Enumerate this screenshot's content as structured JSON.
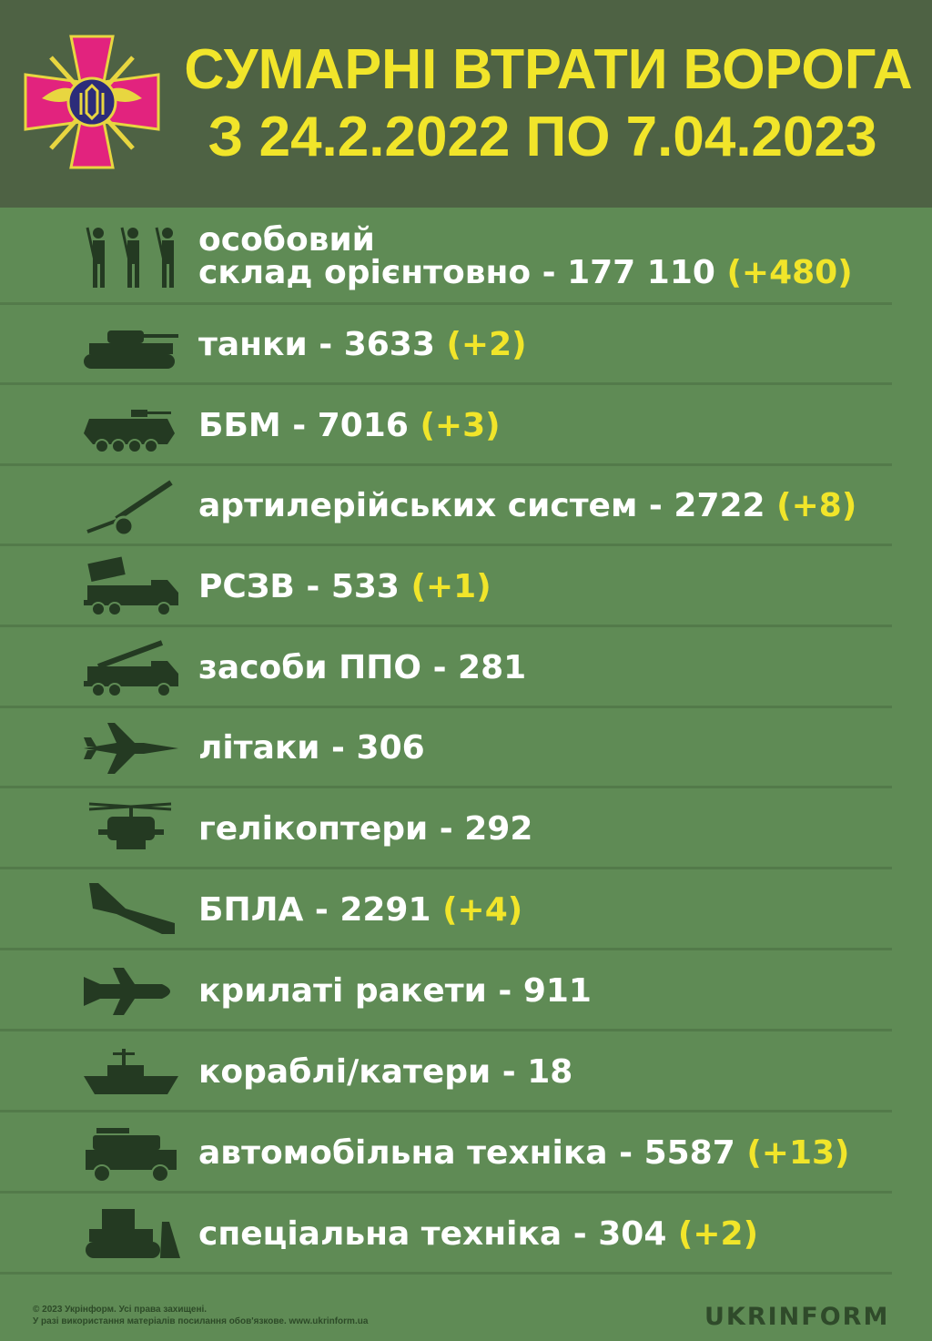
{
  "header": {
    "title_line1": "СУМАРНІ ВТРАТИ ВОРОГА",
    "title_line2": "З 24.2.2022 ПО 7.04.2023"
  },
  "colors": {
    "header_bg": "#4e6244",
    "body_bg": "#5f8b55",
    "accent_yellow": "#f1e52a",
    "icon": "#243a22",
    "emblem_cross": "#e2237e"
  },
  "items": [
    {
      "icon": "soldiers-icon",
      "label_line1": "особовий",
      "label": "склад орієнтовно - 177 110",
      "delta": "(+480)"
    },
    {
      "icon": "tank-icon",
      "label": "танки - 3633",
      "delta": "(+2)"
    },
    {
      "icon": "apc-icon",
      "label": "ББМ - 7016",
      "delta": "(+3)"
    },
    {
      "icon": "artillery-icon",
      "label": "артилерійських систем - 2722",
      "delta": "(+8)"
    },
    {
      "icon": "mlrs-icon",
      "label": "РСЗВ - 533",
      "delta": "(+1)"
    },
    {
      "icon": "air-defense-icon",
      "label": "засоби ППО - 281",
      "delta": ""
    },
    {
      "icon": "jet-icon",
      "label": "літаки - 306",
      "delta": ""
    },
    {
      "icon": "helicopter-icon",
      "label": "гелікоптери - 292",
      "delta": ""
    },
    {
      "icon": "drone-icon",
      "label": "БПЛА - 2291",
      "delta": "(+4)"
    },
    {
      "icon": "cruise-missile-icon",
      "label": "крилаті ракети - 911",
      "delta": ""
    },
    {
      "icon": "ship-icon",
      "label": "кораблі/катери - 18",
      "delta": ""
    },
    {
      "icon": "military-vehicle-icon",
      "label": "автомобільна техніка - 5587",
      "delta": "(+13)"
    },
    {
      "icon": "bulldozer-icon",
      "label": "спеціальна техніка - 304",
      "delta": "(+2)"
    }
  ],
  "footer": {
    "copyright": "© 2023 Укрінформ. Усі права захищені.",
    "notice": "У разі використання матеріалів посилання обов'язкове. www.ukrinform.ua",
    "logo": "UKRINFORM"
  }
}
